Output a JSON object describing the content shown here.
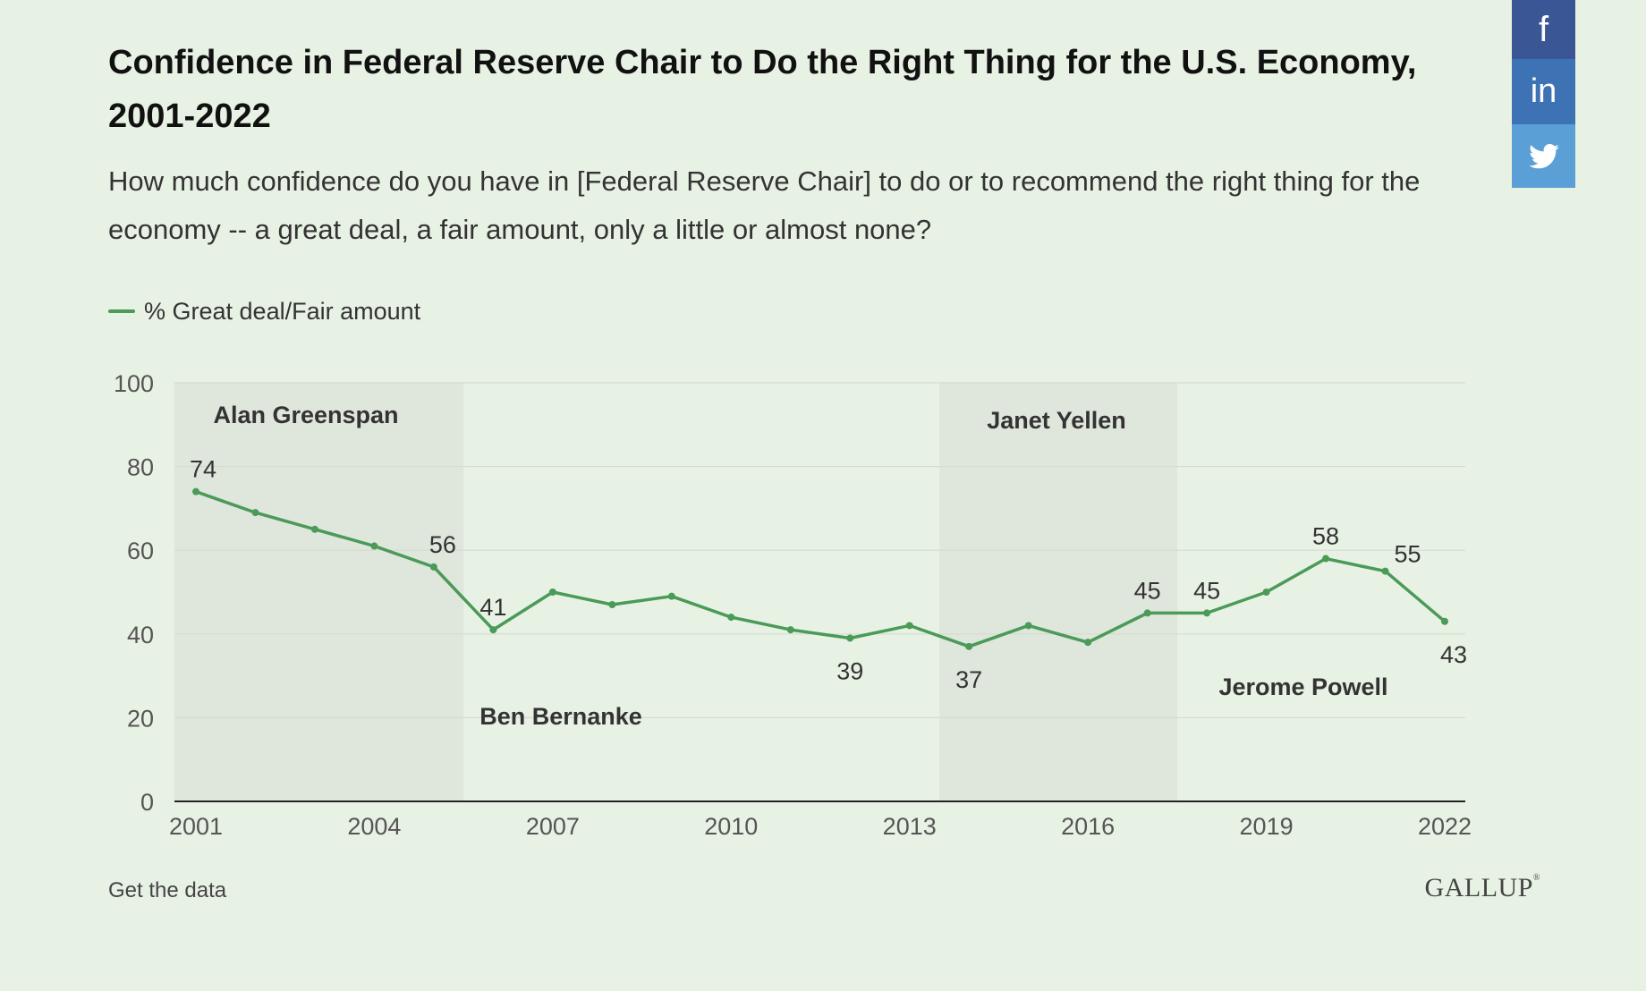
{
  "title": "Confidence in Federal Reserve Chair to Do the Right Thing for the U.S. Economy, 2001-2022",
  "subtitle": "How much confidence do you have in [Federal Reserve Chair] to do or to recommend the right thing for the economy -- a great deal, a fair amount, only a little or almost none?",
  "legend": {
    "label": "% Great deal/Fair amount"
  },
  "footer": {
    "link": "Get the data",
    "brand": "GALLUP",
    "brand_mark": "®"
  },
  "share": [
    {
      "name": "facebook",
      "glyph": "f"
    },
    {
      "name": "linkedin",
      "glyph": "in"
    },
    {
      "name": "twitter",
      "glyph": ""
    }
  ],
  "colors": {
    "background": "#e8f2e4",
    "line": "#4a9a58",
    "band": "#dfe6dc",
    "grid": "#d3dccf",
    "axis": "#222222"
  },
  "chart_data": {
    "type": "line",
    "title": "Confidence in Federal Reserve Chair to Do the Right Thing for the U.S. Economy, 2001-2022",
    "xlabel": "",
    "ylabel": "",
    "xlim": [
      2001,
      2022
    ],
    "ylim": [
      0,
      100
    ],
    "yticks": [
      0,
      20,
      40,
      60,
      80,
      100
    ],
    "xticks": [
      2001,
      2004,
      2007,
      2010,
      2013,
      2016,
      2019,
      2022
    ],
    "grid": true,
    "legend_position": "top-left",
    "series": [
      {
        "name": "% Great deal/Fair amount",
        "color": "#4a9a58",
        "x": [
          2001,
          2002,
          2003,
          2004,
          2005,
          2006,
          2007,
          2008,
          2009,
          2010,
          2011,
          2012,
          2013,
          2014,
          2015,
          2016,
          2017,
          2018,
          2019,
          2020,
          2021,
          2022
        ],
        "y": [
          74,
          69,
          65,
          61,
          56,
          41,
          50,
          47,
          49,
          44,
          41,
          39,
          42,
          37,
          42,
          38,
          45,
          45,
          50,
          58,
          55,
          43
        ]
      }
    ],
    "data_labels": [
      {
        "x": 2001,
        "value": "74",
        "pos": "above"
      },
      {
        "x": 2005,
        "value": "56",
        "pos": "above"
      },
      {
        "x": 2006,
        "value": "41",
        "pos": "above"
      },
      {
        "x": 2012,
        "value": "39",
        "pos": "below"
      },
      {
        "x": 2014,
        "value": "37",
        "pos": "below"
      },
      {
        "x": 2017,
        "value": "45",
        "pos": "above"
      },
      {
        "x": 2018,
        "value": "45",
        "pos": "above"
      },
      {
        "x": 2020,
        "value": "58",
        "pos": "above"
      },
      {
        "x": 2021,
        "value": "55",
        "pos": "above-right"
      },
      {
        "x": 2022,
        "value": "43",
        "pos": "below"
      }
    ],
    "eras": [
      {
        "name": "Alan Greenspan",
        "start": 2001,
        "end": 2006,
        "shaded": true
      },
      {
        "name": "Ben Bernanke",
        "start": 2006,
        "end": 2014,
        "shaded": false
      },
      {
        "name": "Janet Yellen",
        "start": 2014,
        "end": 2018,
        "shaded": true
      },
      {
        "name": "Jerome Powell",
        "start": 2018,
        "end": 2022,
        "shaded": false
      }
    ]
  }
}
